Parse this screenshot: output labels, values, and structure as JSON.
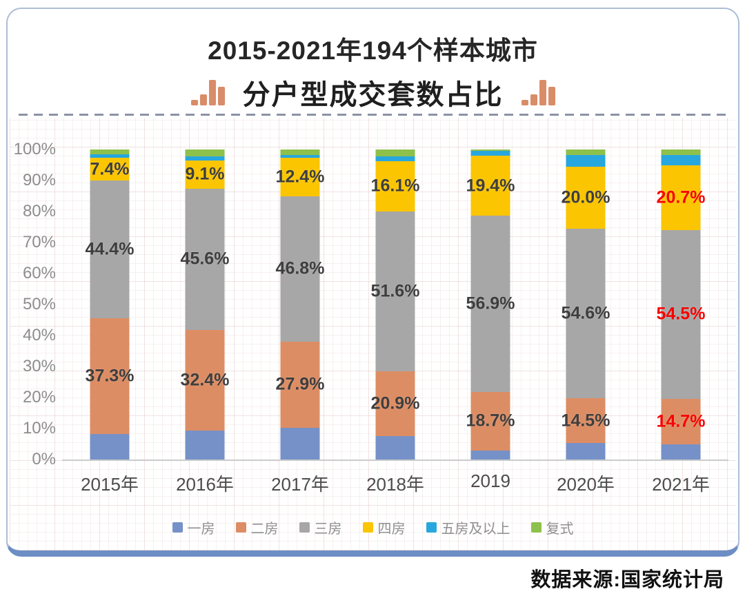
{
  "title": {
    "line1": "2015-2021年194个样本城市",
    "line2": "分户型成交套数占比"
  },
  "source": "数据来源:国家统计局",
  "colors": {
    "card_border": "#aebdd6",
    "card_bottom_edge": "#6d8ec5",
    "title_icon": "#d98c68",
    "axis_text": "#8d8d8d",
    "x_text": "#4c4c4c",
    "legend_text": "#8f8f8f",
    "baseline": "#cbcbcb"
  },
  "chart_data": {
    "type": "bar",
    "stacked": true,
    "title": "2015-2021年194个样本城市 分户型成交套数占比",
    "categories": [
      "2015年",
      "2016年",
      "2017年",
      "2018年",
      "2019",
      "2020年",
      "2021年"
    ],
    "series": [
      {
        "name": "一房",
        "color": "#7591c8",
        "show_labels": false,
        "values": [
          8.2,
          9.4,
          10.2,
          7.6,
          3.0,
          5.3,
          4.9
        ]
      },
      {
        "name": "二房",
        "color": "#dd8d64",
        "show_labels": true,
        "values": [
          37.3,
          32.4,
          27.9,
          20.9,
          18.7,
          14.5,
          14.7
        ]
      },
      {
        "name": "三房",
        "color": "#a7a7a7",
        "show_labels": true,
        "values": [
          44.4,
          45.6,
          46.8,
          51.6,
          56.9,
          54.6,
          54.5
        ]
      },
      {
        "name": "四房",
        "color": "#fbc502",
        "show_labels": true,
        "values": [
          7.4,
          9.1,
          12.4,
          16.1,
          19.4,
          20.0,
          20.7
        ]
      },
      {
        "name": "五房及以上",
        "color": "#28a7de",
        "show_labels": false,
        "values": [
          1.1,
          1.2,
          0.9,
          1.5,
          1.5,
          3.9,
          3.4
        ]
      },
      {
        "name": "复式",
        "color": "#8ec04c",
        "show_labels": false,
        "values": [
          1.6,
          2.3,
          1.8,
          2.3,
          0.5,
          1.7,
          1.8
        ]
      }
    ],
    "y_ticks": [
      "100%",
      "90%",
      "80%",
      "70%",
      "60%",
      "50%",
      "40%",
      "30%",
      "20%",
      "10%",
      "0%"
    ],
    "ylim": [
      0,
      100
    ],
    "grid": true,
    "legend_position": "bottom",
    "label_colors": {
      "default": "#3e3e3e",
      "highlight": "#f80000",
      "highlight_category_index": 6
    }
  }
}
